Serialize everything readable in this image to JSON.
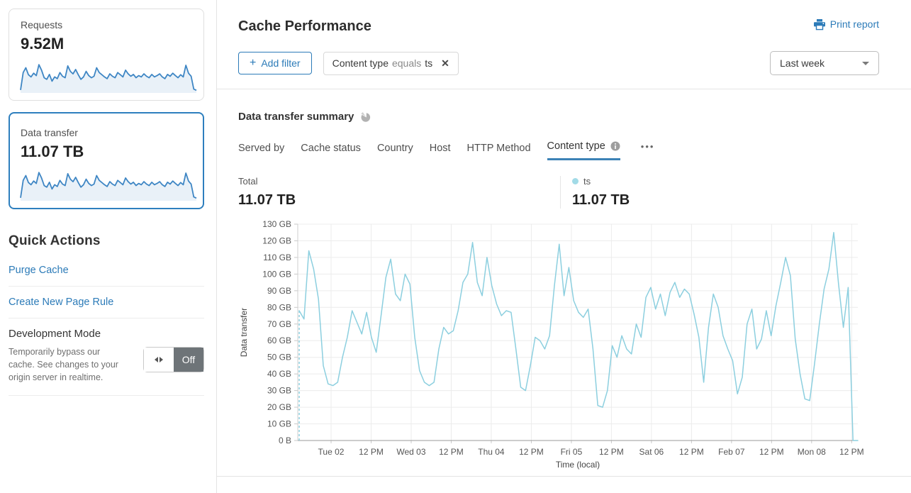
{
  "colors": {
    "accent_blue": "#2c7bb8",
    "chart_line": "#8ccfdf",
    "legend_dot": "#a2dbe7",
    "spark_line": "#3e86c4",
    "spark_fill": "#e9f1f8",
    "selected_card_border": "#2e7fbe",
    "toggle_off_bg": "#6e7478",
    "active_tab_underline": "#3c82b6"
  },
  "sidebar": {
    "cards": [
      {
        "label": "Requests",
        "value": "9.52M"
      },
      {
        "label": "Data transfer",
        "value": "11.07 TB"
      }
    ],
    "sparkline": [
      5,
      62,
      78,
      55,
      48,
      60,
      52,
      88,
      70,
      45,
      40,
      56,
      34,
      48,
      42,
      62,
      50,
      45,
      84,
      66,
      58,
      72,
      55,
      40,
      48,
      66,
      52,
      45,
      50,
      78,
      62,
      55,
      48,
      42,
      58,
      50,
      45,
      62,
      55,
      48,
      70,
      58,
      50,
      56,
      45,
      52,
      48,
      58,
      50,
      45,
      56,
      48,
      52,
      58,
      48,
      42,
      56,
      50,
      60,
      52,
      45,
      55,
      48,
      86,
      60,
      50,
      8,
      4
    ],
    "quick_actions": {
      "title": "Quick Actions",
      "links": [
        "Purge Cache",
        "Create New Page Rule"
      ],
      "dev_mode": {
        "title": "Development Mode",
        "description": "Temporarily bypass our cache. See changes to your origin server in realtime.",
        "toggle_label": "Off"
      }
    }
  },
  "header": {
    "title": "Cache Performance",
    "print_label": "Print report"
  },
  "filters": {
    "add_plus": "+",
    "add_label": "Add filter",
    "chip": {
      "field": "Content type",
      "operator": "equals",
      "value": "ts",
      "close": "✕"
    },
    "range_label": "Last week"
  },
  "summary": {
    "title": "Data transfer summary",
    "tabs": [
      {
        "label": "Served by"
      },
      {
        "label": "Cache status"
      },
      {
        "label": "Country"
      },
      {
        "label": "Host"
      },
      {
        "label": "HTTP Method"
      },
      {
        "label": "Content type"
      }
    ],
    "more_label": "•••",
    "total": {
      "label": "Total",
      "value": "11.07 TB"
    },
    "legend": {
      "label": "ts",
      "value": "11.07 TB"
    }
  },
  "chart_data": {
    "type": "line",
    "title": "Data transfer summary — ts",
    "ylabel": "Data transfer",
    "xlabel": "Time (local)",
    "ylim": [
      0,
      130
    ],
    "y_ticks": [
      "0 B",
      "10 GB",
      "20 GB",
      "30 GB",
      "40 GB",
      "50 GB",
      "60 GB",
      "70 GB",
      "80 GB",
      "90 GB",
      "100 GB",
      "110 GB",
      "120 GB",
      "130 GB"
    ],
    "x_ticks": [
      "Tue 02",
      "12 PM",
      "Wed 03",
      "12 PM",
      "Thu 04",
      "12 PM",
      "Fri 05",
      "12 PM",
      "Sat 06",
      "12 PM",
      "Feb 07",
      "12 PM",
      "Mon 08",
      "12 PM"
    ],
    "x_tick_start_frac": 0.0595,
    "x_tick_step_frac": 0.0715,
    "grid": true,
    "legend_position": "top-right",
    "start_dashed_from_zero": true,
    "unit": "GB",
    "series": [
      {
        "name": "ts",
        "values": [
          78,
          73,
          114,
          103,
          85,
          45,
          34,
          33,
          35,
          50,
          62,
          78,
          71,
          64,
          77,
          62,
          53,
          75,
          98,
          109,
          88,
          84,
          100,
          94,
          62,
          42,
          35,
          33,
          35,
          55,
          68,
          64,
          66,
          78,
          95,
          100,
          119,
          95,
          87,
          110,
          93,
          82,
          75,
          78,
          77,
          55,
          32,
          30,
          45,
          62,
          60,
          55,
          63,
          93,
          118,
          87,
          104,
          84,
          77,
          74,
          79,
          55,
          21,
          20,
          30,
          57,
          50,
          63,
          55,
          52,
          70,
          62,
          86,
          92,
          79,
          88,
          75,
          89,
          95,
          86,
          91,
          88,
          76,
          62,
          35,
          68,
          88,
          80,
          63,
          55,
          48,
          28,
          38,
          70,
          79,
          55,
          61,
          78,
          63,
          81,
          95,
          110,
          99,
          61,
          40,
          25,
          24,
          46,
          70,
          91,
          103,
          125,
          94,
          68,
          92,
          0,
          0
        ]
      }
    ]
  }
}
